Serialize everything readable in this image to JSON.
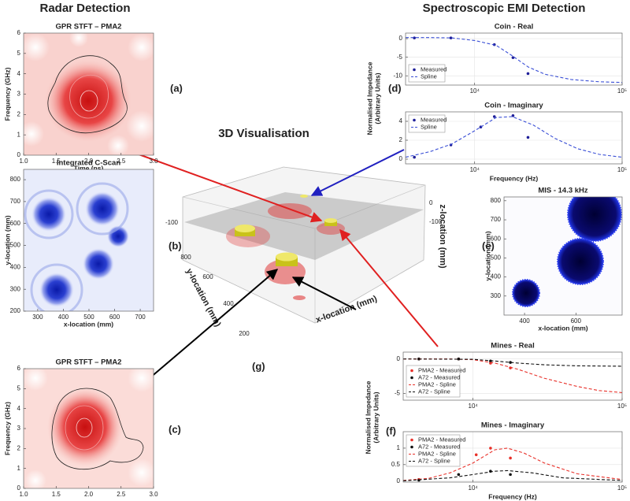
{
  "headings": {
    "radar": "Radar Detection",
    "emi": "Spectroscopic EMI Detection",
    "vis": "3D Visualisation"
  },
  "panel_labels": [
    "(a)",
    "(b)",
    "(c)",
    "(d)",
    "(e)",
    "(f)",
    "(g)"
  ],
  "visualisation": {
    "x_label": "x-location (mm)",
    "y_label": "y-location (mm)",
    "z_label": "z-location (mm)",
    "y_ticks": [
      800,
      600,
      400,
      200
    ],
    "z_ticks": [
      -100
    ],
    "z_ticks_right": [
      0,
      -100
    ]
  },
  "chart_data": [
    {
      "type": "heatmap",
      "title": "GPR STFT – PMA2",
      "x_label": "Time (ns)",
      "y_label": "Frequency (GHz)",
      "xlim": [
        1,
        3
      ],
      "ylim": [
        0,
        6
      ],
      "xticks": [
        {
          "value": 1,
          "label": "1.0"
        },
        {
          "value": 1.5,
          "label": "1.5"
        },
        {
          "value": 2,
          "label": "2.0"
        },
        {
          "value": 2.5,
          "label": "2.5"
        },
        {
          "value": 3,
          "label": "3.0"
        }
      ],
      "yticks": [
        0,
        1,
        2,
        3,
        4,
        5,
        6
      ]
    },
    {
      "type": "heatmap",
      "title": "Integrated C-Scan",
      "x_label": "x-location (mm)",
      "y_label": "y-location (mm)",
      "xlim": [
        245,
        752
      ],
      "ylim": [
        200,
        847
      ],
      "xticks": [
        300,
        400,
        500,
        600,
        700
      ],
      "yticks": [
        200,
        300,
        400,
        500,
        600,
        700,
        800
      ]
    },
    {
      "type": "heatmap",
      "title": "GPR STFT – PMA2",
      "y_label": "Frequency (GHz)",
      "xlim": [
        1,
        3
      ],
      "ylim": [
        0,
        6
      ],
      "xticks": [
        {
          "value": 1,
          "label": "1.0"
        },
        {
          "value": 1.5,
          "label": "1.5"
        },
        {
          "value": 2,
          "label": "2.0"
        },
        {
          "value": 2.5,
          "label": "2.5"
        },
        {
          "value": 3,
          "label": "3.0"
        }
      ],
      "yticks": [
        0,
        1,
        2,
        3,
        4,
        5,
        6
      ]
    },
    {
      "type": "heatmap",
      "title": "MIS - 14.3 kHz",
      "x_label": "x-location (mm)",
      "y_label": "y-location (mm)",
      "xlim": [
        320,
        780
      ],
      "ylim": [
        200,
        820
      ],
      "xticks": [
        400,
        600
      ],
      "yticks": [
        300,
        400,
        500,
        600,
        700,
        800
      ]
    },
    {
      "type": "line",
      "title": "Coin - Real",
      "xscale": "log",
      "xlim": [
        3400,
        100000
      ],
      "ylim": [
        -12.5,
        1.5
      ],
      "xticks": [
        {
          "value": 10000,
          "label": "10⁴"
        },
        {
          "value": 100000,
          "label": "10⁵"
        }
      ],
      "yticks": [
        0,
        -5,
        -10
      ],
      "grid": true,
      "legend": "lower left",
      "series": [
        {
          "name": "Measured",
          "color": "#1f1f99",
          "marker": "dot",
          "x": [
            3900,
            6900,
            13600,
            18200,
            23000
          ],
          "values": [
            0.2,
            0.2,
            -1.6,
            -5.1,
            -9.4
          ]
        },
        {
          "name": "Spline",
          "color": "#3a4fd6",
          "line": "dashed",
          "x": [
            3400,
            5000,
            7000,
            10000,
            14000,
            18000,
            23000,
            30000,
            45000,
            70000,
            100000
          ],
          "values": [
            0.3,
            0.3,
            0.2,
            -0.5,
            -1.8,
            -4.6,
            -7.6,
            -9.6,
            -11,
            -11.6,
            -11.8
          ]
        }
      ]
    },
    {
      "type": "line",
      "title": "Coin - Imaginary",
      "x_label": "Frequency (Hz)",
      "y_label": [
        "Normalised Impedance",
        "(Arbitrary Units)"
      ],
      "xscale": "log",
      "xlim": [
        3400,
        100000
      ],
      "ylim": [
        -0.5,
        5
      ],
      "xticks": [
        {
          "value": 10000,
          "label": "10⁴"
        },
        {
          "value": 100000,
          "label": "10⁵"
        }
      ],
      "yticks": [
        0,
        2,
        4
      ],
      "grid": true,
      "legend": "upper left",
      "series": [
        {
          "name": "Measured",
          "color": "#1f1f99",
          "marker": "dot",
          "x": [
            3900,
            6900,
            11000,
            13600,
            18200,
            23000
          ],
          "values": [
            0.2,
            1.5,
            3.4,
            4.5,
            4.6,
            2.3
          ]
        },
        {
          "name": "Spline",
          "color": "#3a4fd6",
          "line": "dashed",
          "x": [
            3400,
            5000,
            7000,
            10000,
            14000,
            18000,
            25000,
            35000,
            50000,
            70000,
            100000
          ],
          "values": [
            0.2,
            0.8,
            1.6,
            3,
            4.4,
            4.5,
            3.6,
            2.2,
            1.1,
            0.5,
            0.2
          ]
        }
      ]
    },
    {
      "type": "line",
      "title": "Mines - Real",
      "xscale": "log",
      "xlim": [
        3400,
        100000
      ],
      "ylim": [
        -6,
        1
      ],
      "xticks": [
        {
          "value": 10000,
          "label": "10⁴"
        },
        {
          "value": 100000,
          "label": "10⁵"
        }
      ],
      "yticks": [
        0,
        -5
      ],
      "grid": true,
      "legend": "lower left",
      "series": [
        {
          "name": "PMA2 - Measured",
          "color": "#e8312a",
          "marker": "dot",
          "x": [
            4330,
            8000,
            13100,
            17800
          ],
          "values": [
            0,
            0,
            -0.6,
            -1.3
          ]
        },
        {
          "name": "A72 - Measured",
          "color": "#111111",
          "marker": "dot",
          "x": [
            4330,
            8000,
            13100,
            17800
          ],
          "values": [
            0,
            0,
            -0.3,
            -0.5
          ]
        },
        {
          "name": "PMA2 - Spline",
          "color": "#e8312a",
          "line": "dashed",
          "x": [
            3400,
            7000,
            10000,
            14000,
            20000,
            30000,
            50000,
            70000,
            100000
          ],
          "values": [
            0,
            0,
            -0.1,
            -0.6,
            -1.5,
            -2.8,
            -4,
            -4.6,
            -4.9
          ]
        },
        {
          "name": "A72 - Spline",
          "color": "#111111",
          "line": "dashed",
          "x": [
            3400,
            10000,
            14000,
            20000,
            30000,
            50000,
            100000
          ],
          "values": [
            0,
            -0.05,
            -0.3,
            -0.6,
            -0.85,
            -1,
            -1.05
          ]
        }
      ]
    },
    {
      "type": "line",
      "title": "Mines - Imaginary",
      "x_label": "Frequency (Hz)",
      "y_label": [
        "Normalised Impedance",
        "(Arbitrary Units)"
      ],
      "xscale": "log",
      "xlim": [
        3400,
        100000
      ],
      "ylim": [
        -0.03,
        1.5
      ],
      "xticks": [
        {
          "value": 10000,
          "label": "10⁴"
        },
        {
          "value": 100000,
          "label": "10⁵"
        }
      ],
      "yticks": [
        0,
        0.5,
        1
      ],
      "grid": true,
      "legend": "upper left",
      "series": [
        {
          "name": "PMA2 - Measured",
          "color": "#e8312a",
          "marker": "dot",
          "x": [
            4330,
            8000,
            10500,
            13100,
            17800
          ],
          "values": [
            0.05,
            0.6,
            0.8,
            1,
            0.7
          ]
        },
        {
          "name": "A72 - Measured",
          "color": "#111111",
          "marker": "dot",
          "x": [
            4330,
            8000,
            13100,
            17800
          ],
          "values": [
            0.03,
            0.2,
            0.3,
            0.2
          ]
        },
        {
          "name": "PMA2 - Spline",
          "color": "#e8312a",
          "line": "dashed",
          "x": [
            3400,
            5000,
            7000,
            10000,
            14000,
            17000,
            22000,
            30000,
            50000,
            100000
          ],
          "values": [
            0.02,
            0.08,
            0.25,
            0.55,
            0.95,
            1,
            0.85,
            0.55,
            0.22,
            0.05
          ]
        },
        {
          "name": "A72 - Spline",
          "color": "#111111",
          "line": "dashed",
          "x": [
            3400,
            7000,
            10000,
            14000,
            17000,
            25000,
            40000,
            100000
          ],
          "values": [
            0.01,
            0.1,
            0.2,
            0.3,
            0.32,
            0.25,
            0.1,
            0.02
          ]
        }
      ]
    }
  ]
}
